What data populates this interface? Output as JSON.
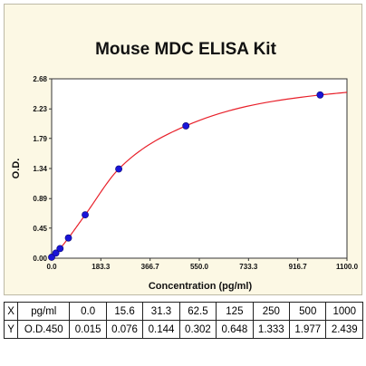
{
  "chart_data": {
    "type": "scatter",
    "title": "Mouse MDC ELISA Kit",
    "xlabel": "Concentration (pg/ml)",
    "ylabel": "O.D.",
    "xlim": [
      0,
      1100
    ],
    "ylim": [
      0,
      2.68
    ],
    "xticks": [
      "0.0",
      "183.3",
      "366.7",
      "550.0",
      "733.3",
      "916.7",
      "1100.0"
    ],
    "yticks": [
      "0.00",
      "0.45",
      "0.89",
      "1.34",
      "1.79",
      "2.23",
      "2.68"
    ],
    "grid": false,
    "fit_curve": true,
    "series": [
      {
        "x": [
          0.0,
          15.6,
          31.3,
          62.5,
          125,
          250,
          500,
          1000
        ],
        "y": [
          0.015,
          0.076,
          0.144,
          0.302,
          0.648,
          1.333,
          1.977,
          2.439
        ]
      }
    ],
    "colors": {
      "points": "#1a14d8",
      "curve": "#e8202a",
      "panel": "#fcf8e4"
    }
  },
  "table": {
    "rows": [
      [
        "X",
        "pg/ml",
        "0.0",
        "15.6",
        "31.3",
        "62.5",
        "125",
        "250",
        "500",
        "1000"
      ],
      [
        "Y",
        "O.D.450",
        "0.015",
        "0.076",
        "0.144",
        "0.302",
        "0.648",
        "1.333",
        "1.977",
        "2.439"
      ]
    ]
  }
}
